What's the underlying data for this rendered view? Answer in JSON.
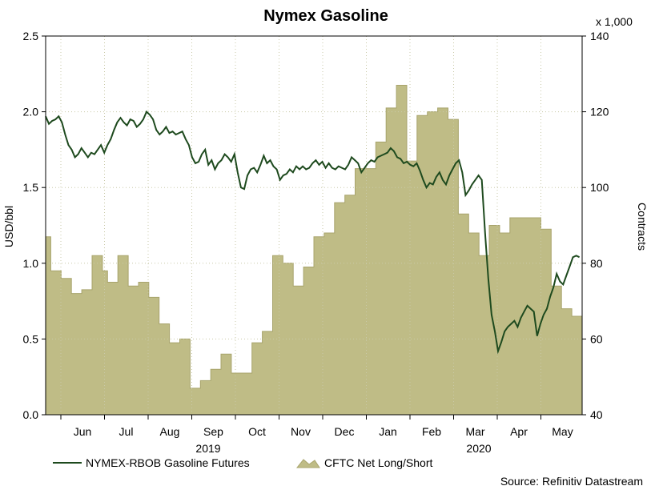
{
  "chart_data": {
    "type": "line-area",
    "title": "Nymex Gasoline",
    "left_axis": {
      "label": "USD/bbl",
      "range": [
        0,
        2.5
      ],
      "ticks": [
        "0.0",
        "0.5",
        "1.0",
        "1.5",
        "2.0",
        "2.5"
      ]
    },
    "right_axis": {
      "label": "Contracts",
      "unit": "x 1,000",
      "range": [
        40,
        140
      ],
      "ticks": [
        "40",
        "60",
        "80",
        "100",
        "120",
        "140"
      ]
    },
    "x_axis": {
      "months": [
        "Jun",
        "Jul",
        "Aug",
        "Sep",
        "Oct",
        "Nov",
        "Dec",
        "Jan",
        "Feb",
        "Mar",
        "Apr",
        "May"
      ],
      "years": [
        "2019",
        "2020"
      ]
    },
    "grid": true,
    "legend_position": "bottom-left",
    "colors": {
      "line": "#1e4a1e",
      "area": "#bfbc86",
      "area_edge": "#a8a46c",
      "grid": "#c9c9a8"
    },
    "series": [
      {
        "name": "NYMEX-RBOB Gasoline Futures",
        "axis": "left",
        "kind": "line",
        "values": [
          1.97,
          1.92,
          1.94,
          1.95,
          1.97,
          1.93,
          1.85,
          1.78,
          1.75,
          1.7,
          1.72,
          1.76,
          1.73,
          1.7,
          1.73,
          1.72,
          1.75,
          1.78,
          1.73,
          1.78,
          1.82,
          1.88,
          1.93,
          1.96,
          1.93,
          1.91,
          1.95,
          1.94,
          1.9,
          1.92,
          1.95,
          2.0,
          1.98,
          1.95,
          1.88,
          1.85,
          1.87,
          1.9,
          1.86,
          1.87,
          1.85,
          1.86,
          1.87,
          1.82,
          1.78,
          1.7,
          1.66,
          1.67,
          1.72,
          1.75,
          1.65,
          1.68,
          1.62,
          1.66,
          1.68,
          1.72,
          1.7,
          1.67,
          1.72,
          1.6,
          1.5,
          1.49,
          1.58,
          1.62,
          1.63,
          1.6,
          1.65,
          1.71,
          1.66,
          1.68,
          1.64,
          1.62,
          1.55,
          1.58,
          1.59,
          1.62,
          1.6,
          1.64,
          1.62,
          1.64,
          1.62,
          1.63,
          1.66,
          1.68,
          1.65,
          1.67,
          1.63,
          1.66,
          1.63,
          1.62,
          1.64,
          1.63,
          1.62,
          1.65,
          1.7,
          1.68,
          1.66,
          1.6,
          1.63,
          1.66,
          1.68,
          1.67,
          1.7,
          1.71,
          1.72,
          1.73,
          1.76,
          1.74,
          1.7,
          1.69,
          1.66,
          1.67,
          1.65,
          1.64,
          1.66,
          1.61,
          1.55,
          1.5,
          1.53,
          1.52,
          1.57,
          1.6,
          1.55,
          1.52,
          1.58,
          1.62,
          1.66,
          1.68,
          1.6,
          1.45,
          1.48,
          1.52,
          1.55,
          1.58,
          1.55,
          1.2,
          0.9,
          0.66,
          0.55,
          0.42,
          0.48,
          0.55,
          0.58,
          0.6,
          0.62,
          0.58,
          0.64,
          0.68,
          0.72,
          0.7,
          0.68,
          0.52,
          0.6,
          0.66,
          0.7,
          0.78,
          0.84,
          0.93,
          0.88,
          0.86,
          0.92,
          0.98,
          1.04,
          1.05,
          1.04
        ]
      },
      {
        "name": "CFTC Net Long/Short",
        "axis": "right",
        "kind": "area-step",
        "values": [
          87,
          78,
          78,
          76,
          76,
          72,
          72,
          73,
          73,
          82,
          82,
          78,
          75,
          75,
          82,
          82,
          74,
          74,
          75,
          75,
          71,
          71,
          64,
          64,
          59,
          59,
          60,
          60,
          47,
          47,
          49,
          49,
          52,
          52,
          56,
          56,
          51,
          51,
          51,
          51,
          59,
          59,
          62,
          62,
          82,
          82,
          80,
          80,
          74,
          74,
          79,
          79,
          87,
          87,
          88,
          88,
          96,
          96,
          98,
          98,
          105,
          105,
          105,
          105,
          112,
          112,
          121,
          121,
          127,
          127,
          107,
          107,
          119,
          119,
          120,
          120,
          121,
          121,
          118,
          118,
          93,
          93,
          88,
          88,
          82,
          82,
          90,
          90,
          88,
          88,
          92,
          92,
          92,
          92,
          92,
          92,
          89,
          89,
          74,
          74,
          68,
          68,
          66,
          66
        ]
      }
    ]
  },
  "source_label": "Source: Refinitiv Datastream"
}
